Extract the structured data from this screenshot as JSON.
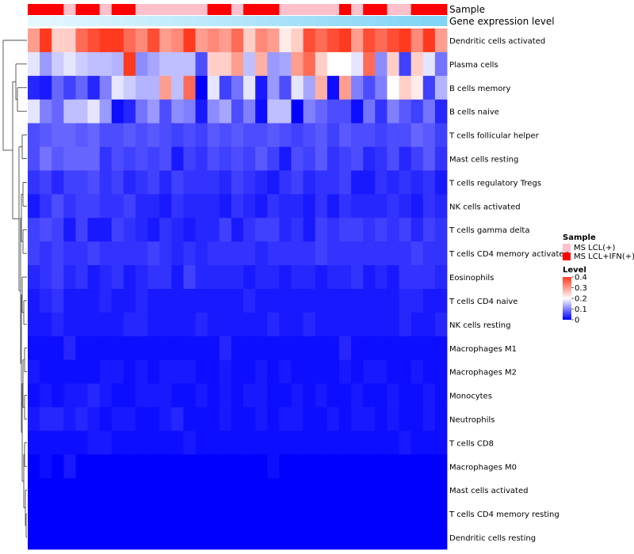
{
  "chart_data": {
    "type": "heatmap",
    "title": "",
    "annotation_tracks": [
      {
        "name": "Sample",
        "values": [
          1,
          1,
          1,
          0,
          1,
          1,
          0,
          1,
          1,
          0,
          0,
          0,
          0,
          0,
          0,
          1,
          1,
          0,
          1,
          1,
          1,
          0,
          0,
          0,
          0,
          0,
          1,
          0,
          1,
          1,
          0,
          0,
          1,
          1,
          1
        ]
      },
      {
        "name": "Gene expression level",
        "values": [
          0.0,
          0.03,
          0.06,
          0.09,
          0.12,
          0.15,
          0.18,
          0.21,
          0.24,
          0.26,
          0.29,
          0.32,
          0.35,
          0.38,
          0.41,
          0.44,
          0.47,
          0.5,
          0.53,
          0.56,
          0.59,
          0.62,
          0.65,
          0.68,
          0.71,
          0.74,
          0.76,
          0.79,
          0.82,
          0.85,
          0.88,
          0.91,
          0.94,
          0.97,
          1.0
        ]
      }
    ],
    "rows": [
      "Dendritic cells activated",
      "Plasma cells",
      "B cells memory",
      "B cells naive",
      "T cells follicular helper",
      "Mast cells resting",
      "T cells regulatory  Tregs",
      "NK cells activated",
      "T cells gamma delta",
      "T cells CD4 memory activated",
      "Eosinophils",
      "T cells CD4 naive",
      "NK cells resting",
      "Macrophages M1",
      "Macrophages M2",
      "Monocytes",
      "Neutrophils",
      "T cells CD8",
      "Macrophages M0",
      "Mast cells activated",
      "T cells CD4 memory resting",
      "Dendritic cells resting"
    ],
    "values": [
      [
        0.3,
        0.4,
        0.25,
        0.25,
        0.35,
        0.38,
        0.4,
        0.4,
        0.35,
        0.32,
        0.38,
        0.3,
        0.32,
        0.4,
        0.3,
        0.32,
        0.3,
        0.35,
        0.25,
        0.32,
        0.3,
        0.22,
        0.25,
        0.38,
        0.35,
        0.38,
        0.4,
        0.3,
        0.38,
        0.35,
        0.38,
        0.4,
        0.32,
        0.4,
        0.3
      ],
      [
        0.18,
        0.12,
        0.16,
        0.18,
        0.16,
        0.15,
        0.15,
        0.14,
        0.4,
        0.11,
        0.13,
        0.15,
        0.15,
        0.15,
        0.06,
        0.25,
        0.25,
        0.3,
        0.15,
        0.28,
        0.12,
        0.13,
        0.3,
        0.35,
        0.25,
        0.2,
        0.2,
        0.18,
        0.35,
        0.11,
        0.25,
        0.05,
        0.25,
        0.18,
        0.09
      ],
      [
        0.03,
        0.02,
        0.08,
        0.05,
        0.08,
        0.03,
        0.1,
        0.18,
        0.16,
        0.14,
        0.14,
        0.3,
        0.15,
        0.35,
        0.0,
        0.18,
        0.05,
        0.09,
        0.18,
        0.02,
        0.12,
        0.06,
        0.18,
        0.13,
        0.28,
        0.01,
        0.3,
        0.1,
        0.06,
        0.1,
        0.2,
        0.25,
        0.22,
        0.05,
        0.14
      ],
      [
        0.18,
        0.1,
        0.08,
        0.15,
        0.15,
        0.18,
        0.12,
        0.01,
        0.03,
        0.09,
        0.12,
        0.06,
        0.11,
        0.1,
        0.02,
        0.11,
        0.13,
        0.06,
        0.1,
        0.01,
        0.15,
        0.15,
        0.0,
        0.1,
        0.08,
        0.06,
        0.06,
        0.01,
        0.09,
        0.04,
        0.1,
        0.07,
        0.05,
        0.09,
        0.03
      ],
      [
        0.06,
        0.07,
        0.08,
        0.08,
        0.07,
        0.08,
        0.06,
        0.06,
        0.07,
        0.06,
        0.07,
        0.06,
        0.05,
        0.06,
        0.05,
        0.07,
        0.06,
        0.07,
        0.06,
        0.06,
        0.07,
        0.06,
        0.05,
        0.06,
        0.07,
        0.05,
        0.07,
        0.06,
        0.06,
        0.05,
        0.06,
        0.06,
        0.08,
        0.07,
        0.05
      ],
      [
        0.06,
        0.09,
        0.07,
        0.08,
        0.08,
        0.08,
        0.04,
        0.06,
        0.05,
        0.06,
        0.05,
        0.06,
        0.02,
        0.05,
        0.04,
        0.06,
        0.05,
        0.06,
        0.05,
        0.07,
        0.05,
        0.02,
        0.06,
        0.05,
        0.07,
        0.04,
        0.05,
        0.06,
        0.03,
        0.04,
        0.06,
        0.03,
        0.05,
        0.07,
        0.04
      ],
      [
        0.04,
        0.05,
        0.03,
        0.05,
        0.05,
        0.06,
        0.04,
        0.05,
        0.03,
        0.04,
        0.05,
        0.03,
        0.05,
        0.04,
        0.04,
        0.04,
        0.03,
        0.05,
        0.04,
        0.03,
        0.02,
        0.04,
        0.05,
        0.03,
        0.04,
        0.04,
        0.05,
        0.02,
        0.02,
        0.04,
        0.03,
        0.04,
        0.03,
        0.04,
        0.02
      ],
      [
        0.02,
        0.04,
        0.06,
        0.04,
        0.05,
        0.05,
        0.04,
        0.04,
        0.05,
        0.03,
        0.03,
        0.02,
        0.04,
        0.03,
        0.03,
        0.03,
        0.02,
        0.04,
        0.03,
        0.02,
        0.04,
        0.03,
        0.03,
        0.02,
        0.04,
        0.02,
        0.04,
        0.03,
        0.03,
        0.03,
        0.04,
        0.03,
        0.02,
        0.04,
        0.03
      ],
      [
        0.05,
        0.06,
        0.05,
        0.02,
        0.05,
        0.02,
        0.02,
        0.05,
        0.04,
        0.03,
        0.02,
        0.04,
        0.03,
        0.02,
        0.03,
        0.03,
        0.05,
        0.02,
        0.04,
        0.05,
        0.05,
        0.03,
        0.04,
        0.02,
        0.05,
        0.04,
        0.05,
        0.05,
        0.04,
        0.05,
        0.04,
        0.05,
        0.03,
        0.05,
        0.04
      ],
      [
        0.05,
        0.04,
        0.05,
        0.04,
        0.04,
        0.05,
        0.04,
        0.04,
        0.04,
        0.04,
        0.05,
        0.04,
        0.03,
        0.04,
        0.03,
        0.04,
        0.04,
        0.04,
        0.04,
        0.03,
        0.04,
        0.04,
        0.04,
        0.04,
        0.05,
        0.04,
        0.04,
        0.04,
        0.04,
        0.04,
        0.04,
        0.04,
        0.05,
        0.04,
        0.04
      ],
      [
        0.03,
        0.04,
        0.05,
        0.03,
        0.04,
        0.02,
        0.03,
        0.04,
        0.02,
        0.03,
        0.04,
        0.04,
        0.02,
        0.05,
        0.03,
        0.03,
        0.03,
        0.03,
        0.02,
        0.03,
        0.03,
        0.02,
        0.03,
        0.03,
        0.02,
        0.03,
        0.03,
        0.04,
        0.02,
        0.03,
        0.02,
        0.04,
        0.04,
        0.04,
        0.03
      ],
      [
        0.02,
        0.03,
        0.04,
        0.02,
        0.02,
        0.02,
        0.03,
        0.02,
        0.02,
        0.03,
        0.02,
        0.02,
        0.02,
        0.02,
        0.02,
        0.02,
        0.02,
        0.02,
        0.03,
        0.02,
        0.02,
        0.02,
        0.02,
        0.02,
        0.02,
        0.02,
        0.02,
        0.02,
        0.02,
        0.02,
        0.02,
        0.03,
        0.03,
        0.02,
        0.02
      ],
      [
        0.02,
        0.02,
        0.03,
        0.02,
        0.02,
        0.02,
        0.02,
        0.02,
        0.03,
        0.03,
        0.02,
        0.02,
        0.02,
        0.02,
        0.03,
        0.02,
        0.02,
        0.02,
        0.02,
        0.02,
        0.03,
        0.02,
        0.02,
        0.03,
        0.02,
        0.02,
        0.02,
        0.02,
        0.02,
        0.02,
        0.02,
        0.03,
        0.02,
        0.02,
        0.03
      ],
      [
        0.01,
        0.01,
        0.01,
        0.03,
        0.01,
        0.01,
        0.01,
        0.01,
        0.01,
        0.01,
        0.01,
        0.01,
        0.01,
        0.01,
        0.01,
        0.01,
        0.03,
        0.01,
        0.01,
        0.01,
        0.01,
        0.01,
        0.01,
        0.01,
        0.01,
        0.01,
        0.03,
        0.01,
        0.01,
        0.01,
        0.01,
        0.01,
        0.01,
        0.01,
        0.01
      ],
      [
        0.02,
        0.01,
        0.01,
        0.01,
        0.01,
        0.01,
        0.02,
        0.02,
        0.01,
        0.02,
        0.01,
        0.02,
        0.02,
        0.02,
        0.01,
        0.01,
        0.02,
        0.01,
        0.01,
        0.02,
        0.01,
        0.02,
        0.01,
        0.01,
        0.01,
        0.01,
        0.02,
        0.01,
        0.02,
        0.02,
        0.01,
        0.01,
        0.02,
        0.01,
        0.01
      ],
      [
        0.01,
        0.02,
        0.01,
        0.02,
        0.02,
        0.03,
        0.02,
        0.01,
        0.01,
        0.02,
        0.02,
        0.02,
        0.01,
        0.01,
        0.02,
        0.01,
        0.02,
        0.01,
        0.02,
        0.02,
        0.01,
        0.01,
        0.02,
        0.01,
        0.02,
        0.01,
        0.01,
        0.02,
        0.01,
        0.01,
        0.02,
        0.01,
        0.01,
        0.02,
        0.01
      ],
      [
        0.02,
        0.03,
        0.03,
        0.02,
        0.03,
        0.02,
        0.01,
        0.02,
        0.02,
        0.01,
        0.01,
        0.02,
        0.03,
        0.01,
        0.01,
        0.01,
        0.02,
        0.01,
        0.01,
        0.02,
        0.01,
        0.02,
        0.02,
        0.01,
        0.01,
        0.02,
        0.01,
        0.02,
        0.02,
        0.01,
        0.02,
        0.01,
        0.01,
        0.02,
        0.01
      ],
      [
        0.01,
        0.01,
        0.01,
        0.01,
        0.01,
        0.02,
        0.02,
        0.01,
        0.01,
        0.01,
        0.01,
        0.01,
        0.01,
        0.02,
        0.01,
        0.01,
        0.01,
        0.01,
        0.01,
        0.01,
        0.01,
        0.01,
        0.01,
        0.01,
        0.01,
        0.01,
        0.01,
        0.01,
        0.01,
        0.01,
        0.01,
        0.02,
        0.01,
        0.01,
        0.01
      ],
      [
        0.0,
        0.01,
        0.0,
        0.02,
        0.0,
        0.0,
        0.0,
        0.0,
        0.0,
        0.0,
        0.0,
        0.0,
        0.0,
        0.0,
        0.0,
        0.0,
        0.0,
        0.0,
        0.0,
        0.0,
        0.01,
        0.0,
        0.0,
        0.0,
        0.0,
        0.0,
        0.0,
        0.0,
        0.0,
        0.0,
        0.0,
        0.0,
        0.0,
        0.0,
        0.0
      ],
      [
        0.0,
        0.0,
        0.0,
        0.0,
        0.0,
        0.0,
        0.0,
        0.0,
        0.0,
        0.0,
        0.0,
        0.0,
        0.0,
        0.0,
        0.0,
        0.0,
        0.0,
        0.0,
        0.0,
        0.0,
        0.0,
        0.0,
        0.0,
        0.0,
        0.0,
        0.0,
        0.0,
        0.0,
        0.0,
        0.0,
        0.0,
        0.0,
        0.0,
        0.0,
        0.0
      ],
      [
        0.0,
        0.0,
        0.0,
        0.0,
        0.0,
        0.0,
        0.0,
        0.0,
        0.0,
        0.0,
        0.0,
        0.0,
        0.0,
        0.0,
        0.0,
        0.0,
        0.0,
        0.0,
        0.0,
        0.0,
        0.0,
        0.0,
        0.0,
        0.0,
        0.0,
        0.0,
        0.0,
        0.0,
        0.0,
        0.0,
        0.0,
        0.0,
        0.0,
        0.0,
        0.0
      ],
      [
        0.0,
        0.0,
        0.0,
        0.0,
        0.0,
        0.0,
        0.0,
        0.0,
        0.0,
        0.0,
        0.0,
        0.0,
        0.0,
        0.0,
        0.0,
        0.0,
        0.0,
        0.0,
        0.0,
        0.0,
        0.0,
        0.0,
        0.0,
        0.0,
        0.0,
        0.0,
        0.0,
        0.0,
        0.0,
        0.0,
        0.0,
        0.0,
        0.0,
        0.0,
        0.0
      ]
    ],
    "color_scale": {
      "min": 0,
      "max": 0.4,
      "stops": [
        [
          0,
          "#0000ff"
        ],
        [
          0.2,
          "#ffffff"
        ],
        [
          0.4,
          "#ff3a1f"
        ]
      ]
    },
    "legend": {
      "sample": {
        "title": "Sample",
        "entries": [
          {
            "label": "MS LCL(+)",
            "color": "#ffc0cb"
          },
          {
            "label": "MS LCL+IFN(+)",
            "color": "#ff0000"
          }
        ]
      },
      "level": {
        "title": "Level",
        "ticks": [
          0.4,
          0.3,
          0.2,
          0.1,
          0
        ]
      },
      "placement": "right"
    },
    "gene_expression_colors": [
      "#e6f7ff",
      "#80d4f5"
    ]
  }
}
